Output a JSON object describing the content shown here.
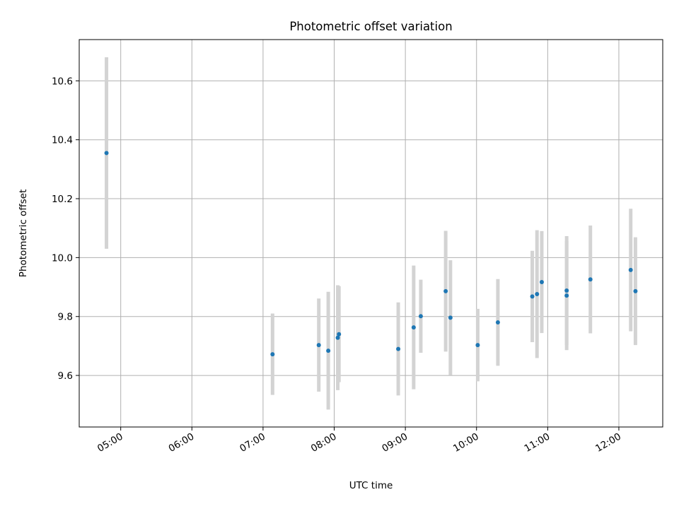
{
  "chart_data": {
    "type": "scatter",
    "title": "Photometric offset variation",
    "xlabel": "UTC time",
    "ylabel": "Photometric offset",
    "x_ticks": [
      "05:00",
      "06:00",
      "07:00",
      "08:00",
      "09:00",
      "10:00",
      "11:00",
      "12:00"
    ],
    "y_ticks": [
      "9.6",
      "9.8",
      "10.0",
      "10.2",
      "10.4",
      "10.6"
    ],
    "xlim": [
      "04:25",
      "12:37"
    ],
    "ylim": [
      9.425,
      10.74
    ],
    "grid": true,
    "marker_color": "#1f77b4",
    "errorbar_color": "#d3d3d3",
    "points": [
      {
        "x": "04:48",
        "y": 10.355,
        "yerr": 0.325
      },
      {
        "x": "07:08",
        "y": 9.672,
        "yerr": 0.138
      },
      {
        "x": "07:47",
        "y": 9.703,
        "yerr": 0.158
      },
      {
        "x": "07:55",
        "y": 9.684,
        "yerr": 0.2
      },
      {
        "x": "08:03",
        "y": 9.728,
        "yerr": 0.178
      },
      {
        "x": "08:04",
        "y": 9.74,
        "yerr": 0.163
      },
      {
        "x": "08:54",
        "y": 9.69,
        "yerr": 0.158
      },
      {
        "x": "09:07",
        "y": 9.763,
        "yerr": 0.21
      },
      {
        "x": "09:13",
        "y": 9.801,
        "yerr": 0.124
      },
      {
        "x": "09:34",
        "y": 9.886,
        "yerr": 0.205
      },
      {
        "x": "09:38",
        "y": 9.796,
        "yerr": 0.195
      },
      {
        "x": "10:01",
        "y": 9.703,
        "yerr": 0.123
      },
      {
        "x": "10:18",
        "y": 9.78,
        "yerr": 0.147
      },
      {
        "x": "10:47",
        "y": 9.868,
        "yerr": 0.155
      },
      {
        "x": "10:51",
        "y": 9.876,
        "yerr": 0.217
      },
      {
        "x": "10:55",
        "y": 9.917,
        "yerr": 0.173
      },
      {
        "x": "11:16",
        "y": 9.888,
        "yerr": 0.185
      },
      {
        "x": "11:16",
        "y": 9.871,
        "yerr": 0.185
      },
      {
        "x": "11:36",
        "y": 9.926,
        "yerr": 0.183
      },
      {
        "x": "12:10",
        "y": 9.958,
        "yerr": 0.208
      },
      {
        "x": "12:14",
        "y": 9.886,
        "yerr": 0.183
      }
    ]
  }
}
